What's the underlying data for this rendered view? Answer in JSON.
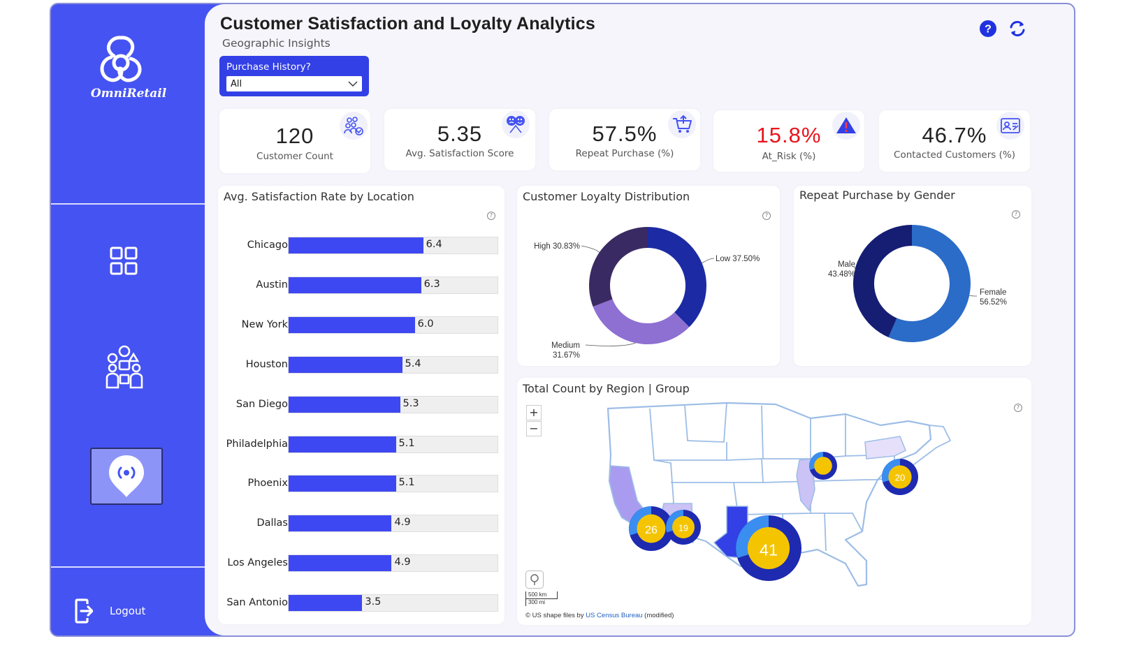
{
  "app": {
    "brand": "OmniRetail",
    "title": "Customer Satisfaction and Loyalty Analytics",
    "subtitle": "Geographic Insights",
    "logout_label": "Logout"
  },
  "filter": {
    "label": "Purchase History?",
    "value": "All"
  },
  "kpis": [
    {
      "value": "120",
      "label": "Customer Count",
      "icon": "people-group-icon"
    },
    {
      "value": "5.35",
      "label": "Avg. Satisfaction Score",
      "icon": "satisfaction-faces-icon"
    },
    {
      "value": "57.5%",
      "label": "Repeat Purchase (%)",
      "icon": "shopping-cart-icon"
    },
    {
      "value": "15.8%",
      "label": "At_Risk (%)",
      "icon": "warning-icon",
      "color": "#e8141b"
    },
    {
      "value": "46.7%",
      "label": "Contacted Customers (%)",
      "icon": "contact-card-icon"
    }
  ],
  "panels": {
    "location_title": "Avg. Satisfaction Rate by Location",
    "loyalty_title": "Customer Loyalty Distribution",
    "gender_title": "Repeat Purchase by Gender",
    "map_title": "Total Count by Region | Group"
  },
  "map": {
    "zoom_in": "+",
    "zoom_out": "−",
    "scale_km": "500 km",
    "scale_mi": "300 mi",
    "credit_prefix": "© US shape files by ",
    "credit_link": "US Census Bureau",
    "credit_suffix": " (modified)"
  },
  "chart_data": [
    {
      "type": "bar",
      "title": "Avg. Satisfaction Rate by Location",
      "orientation": "horizontal",
      "categories": [
        "Chicago",
        "Austin",
        "New York",
        "Houston",
        "San Diego",
        "Philadelphia",
        "Phoenix",
        "Dallas",
        "Los Angeles",
        "San Antonio"
      ],
      "values": [
        6.4,
        6.3,
        6.0,
        5.4,
        5.3,
        5.1,
        5.1,
        4.9,
        4.9,
        3.5
      ],
      "xlim": [
        0,
        10
      ],
      "color": "#3e48f2"
    },
    {
      "type": "pie",
      "title": "Customer Loyalty Distribution",
      "donut": true,
      "slices": [
        {
          "label": "Low",
          "value": 37.5,
          "display": "Low 37.50%",
          "color": "#1c2ba3"
        },
        {
          "label": "Medium",
          "value": 31.67,
          "display": [
            "Medium",
            "31.67%"
          ],
          "color": "#8e6fd2"
        },
        {
          "label": "High",
          "value": 30.83,
          "display": "High 30.83%",
          "color": "#3a2a63"
        }
      ]
    },
    {
      "type": "pie",
      "title": "Repeat Purchase by Gender",
      "donut": true,
      "slices": [
        {
          "label": "Female",
          "value": 56.52,
          "display": [
            "Female",
            "56.52%"
          ],
          "color": "#2a6cc8"
        },
        {
          "label": "Male",
          "value": 43.48,
          "display": [
            "Male",
            "43.48%"
          ],
          "color": "#151e73"
        }
      ]
    },
    {
      "type": "map",
      "title": "Total Count by Region | Group",
      "bubbles": [
        {
          "value": 41,
          "display": "41"
        },
        {
          "value": 26,
          "display": "26"
        },
        {
          "value": 20,
          "display": "20"
        },
        {
          "value": 19,
          "display": "19"
        },
        {
          "value": 14,
          "display": ""
        }
      ]
    }
  ]
}
